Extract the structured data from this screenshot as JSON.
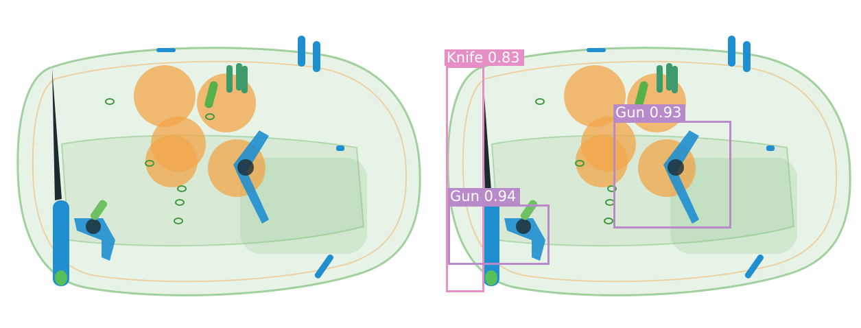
{
  "panels": [
    {
      "name": "original-scan"
    },
    {
      "name": "annotated-scan"
    }
  ],
  "detections": [
    {
      "class": "Knife",
      "confidence": "0.83",
      "label": "Knife 0.83",
      "color": "#e58fc6"
    },
    {
      "class": "Gun",
      "confidence": "0.93",
      "label": "Gun 0.93",
      "color": "#b98ac9"
    },
    {
      "class": "Gun",
      "confidence": "0.94",
      "label": "Gun 0.94",
      "color": "#b98ac9"
    }
  ],
  "colors": {
    "background": "#ffffff",
    "organic": "#f2a64a",
    "inorganic": "#7fbf7a",
    "metal": "#1f8fd0",
    "dense": "#1d2b2f"
  }
}
